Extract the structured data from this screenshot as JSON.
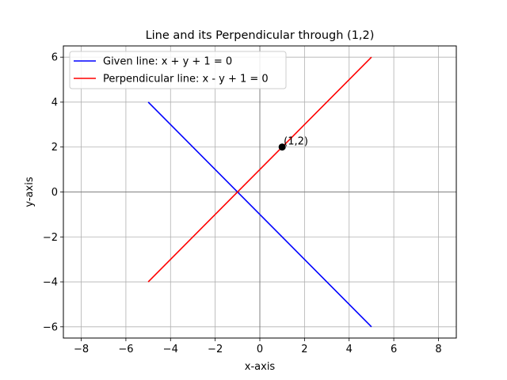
{
  "chart_data": {
    "type": "line",
    "title": "Line and its Perpendicular through (1,2)",
    "xlabel": "x-axis",
    "ylabel": "y-axis",
    "xlim": [
      -8.8,
      8.8
    ],
    "ylim": [
      -6.5,
      6.5
    ],
    "xticks": [
      -8,
      -6,
      -4,
      -2,
      0,
      2,
      4,
      6,
      8
    ],
    "yticks": [
      -6,
      -4,
      -2,
      0,
      2,
      4,
      6
    ],
    "xtick_labels": [
      "−8",
      "−6",
      "−4",
      "−2",
      "0",
      "2",
      "4",
      "6",
      "8"
    ],
    "ytick_labels": [
      "−6",
      "−4",
      "−2",
      "0",
      "2",
      "4",
      "6"
    ],
    "grid": true,
    "legend_position": "top-left",
    "series": [
      {
        "name": "Given line: x + y + 1 = 0",
        "color": "#0000ff",
        "x": [
          -5,
          5
        ],
        "y": [
          4,
          -6
        ]
      },
      {
        "name": "Perpendicular line: x - y + 1 = 0",
        "color": "#ff0000",
        "x": [
          -5,
          5
        ],
        "y": [
          -4,
          6
        ]
      }
    ],
    "points": [
      {
        "x": 1,
        "y": 2,
        "label": "(1,2)",
        "color": "#000000"
      }
    ]
  }
}
